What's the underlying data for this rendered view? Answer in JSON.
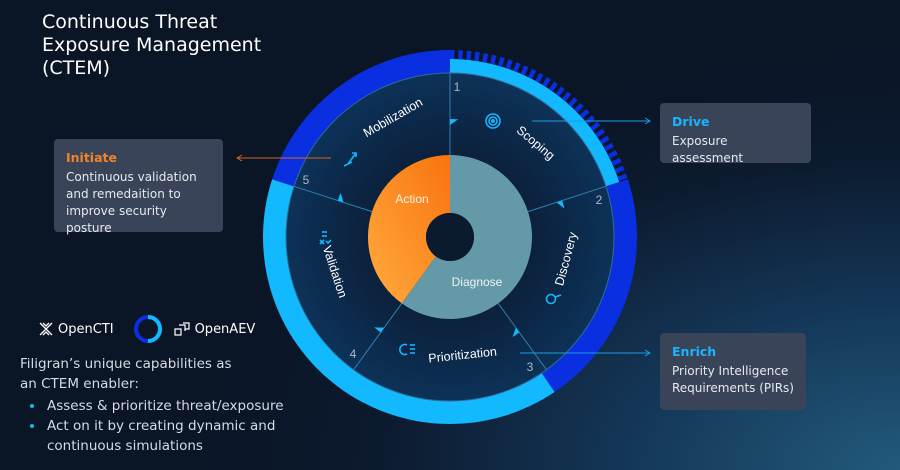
{
  "title": "Continuous Threat Exposure Management (CTEM)",
  "stages": [
    {
      "number": "1",
      "label": "Scoping",
      "icon": "target-icon"
    },
    {
      "number": "2",
      "label": "Discovery",
      "icon": "magnifier-icon"
    },
    {
      "number": "3",
      "label": "Prioritization",
      "icon": "prioritize-icon"
    },
    {
      "number": "4",
      "label": "Validation",
      "icon": "validation-icon"
    },
    {
      "number": "5",
      "label": "Mobilization",
      "icon": "arrow-up-right-icon"
    }
  ],
  "core": {
    "action": "Action",
    "diagnose": "Diagnose"
  },
  "callouts": {
    "initiate": {
      "heading": "Initiate",
      "text": "Continuous validation and remedaition to improve security posture"
    },
    "drive": {
      "heading": "Drive",
      "text": "Exposure assessment"
    },
    "enrich": {
      "heading": "Enrich",
      "text": "Priority Intelligence Requirements (PIRs)"
    }
  },
  "logos": {
    "opencti": "OpenCTI",
    "openaev": "OpenAEV"
  },
  "description": {
    "intro": "Filigran’s unique capabilities as an CTEM enabler:",
    "bullets": [
      "Assess & prioritize threat/exposure",
      "Act on it by creating dynamic and continuous simulations"
    ]
  },
  "colors": {
    "light_blue": "#12b9ff",
    "royal_blue": "#0a2fe0",
    "orange": "#ff8a1c",
    "teal": "#6499a8",
    "initiate": "#f08428"
  }
}
